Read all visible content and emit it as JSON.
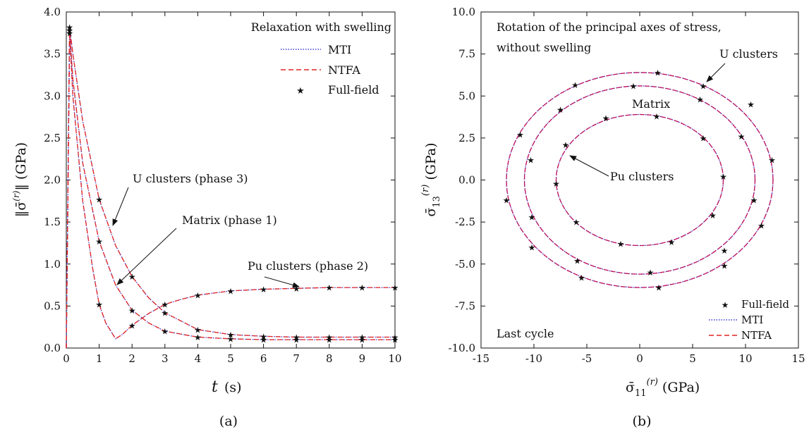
{
  "chart_data": [
    {
      "type": "line",
      "panel_label": "(a)",
      "title": "Relaxation with swelling",
      "xlabel": "t (s)",
      "ylabel": "‖σ̄(r)‖ (GPa)",
      "xlim": [
        0,
        10
      ],
      "ylim": [
        0,
        4
      ],
      "xticks": [
        0,
        1,
        2,
        3,
        4,
        5,
        6,
        7,
        8,
        9,
        10
      ],
      "yticks": [
        0,
        0.5,
        1.0,
        1.5,
        2.0,
        2.5,
        3.0,
        3.5,
        4.0
      ],
      "ytick_labels": [
        "0.0",
        "0.5",
        "1.0",
        "1.5",
        "2.0",
        "2.5",
        "3.0",
        "3.5",
        "4.0"
      ],
      "grid": false,
      "legend": {
        "position": "top-right",
        "entries": [
          "MTI",
          "NTFA",
          "Full-field"
        ]
      },
      "series": [
        {
          "name": "U clusters (phase 3)",
          "x": [
            0,
            0.1,
            0.2,
            0.5,
            1,
            1.5,
            2,
            2.5,
            3,
            4,
            5,
            6,
            7,
            8,
            9,
            10
          ],
          "values": [
            0,
            3.82,
            3.5,
            2.7,
            1.77,
            1.22,
            0.85,
            0.6,
            0.42,
            0.22,
            0.16,
            0.14,
            0.13,
            0.13,
            0.13,
            0.13
          ]
        },
        {
          "name": "Matrix (phase 1)",
          "x": [
            0,
            0.1,
            0.2,
            0.5,
            1,
            1.5,
            2,
            2.5,
            3,
            4,
            5,
            6,
            7,
            8,
            9,
            10
          ],
          "values": [
            0,
            3.78,
            3.2,
            2.2,
            1.27,
            0.75,
            0.45,
            0.3,
            0.2,
            0.13,
            0.11,
            0.1,
            0.1,
            0.1,
            0.1,
            0.1
          ]
        },
        {
          "name": "Pu clusters (phase 2)",
          "x": [
            0,
            0.1,
            0.2,
            0.5,
            0.8,
            1,
            1.2,
            1.5,
            1.7,
            2,
            2.5,
            3,
            3.5,
            4,
            5,
            6,
            7,
            8,
            9,
            10
          ],
          "values": [
            0,
            3.75,
            3.0,
            1.75,
            0.95,
            0.52,
            0.3,
            0.11,
            0.16,
            0.27,
            0.41,
            0.52,
            0.58,
            0.63,
            0.68,
            0.7,
            0.71,
            0.72,
            0.72,
            0.72
          ]
        }
      ],
      "full_field_markers": {
        "x": [
          0.1,
          1,
          2,
          3,
          4,
          5,
          6,
          7,
          8,
          9,
          10
        ],
        "U clusters (phase 3)": [
          3.82,
          1.77,
          0.85,
          0.42,
          0.22,
          0.16,
          0.14,
          0.13,
          0.13,
          0.13,
          0.13
        ],
        "Matrix (phase 1)": [
          3.78,
          1.27,
          0.45,
          0.2,
          0.13,
          0.11,
          0.1,
          0.1,
          0.1,
          0.1,
          0.1
        ],
        "Pu clusters (phase 2)": [
          3.75,
          0.52,
          0.27,
          0.52,
          0.63,
          0.68,
          0.7,
          0.71,
          0.72,
          0.72,
          0.72
        ]
      },
      "annotations": [
        "U clusters (phase 3)",
        "Matrix (phase 1)",
        "Pu clusters (phase 2)"
      ]
    },
    {
      "type": "line",
      "panel_label": "(b)",
      "title": "Rotation of the principal axes of stress, without swelling",
      "xlabel": "σ̄11(r) (GPa)",
      "ylabel": "σ̄13(r) (GPa)",
      "xlim": [
        -15,
        15
      ],
      "ylim": [
        -10,
        10
      ],
      "xticks": [
        -15,
        -10,
        -5,
        0,
        5,
        10,
        15
      ],
      "yticks": [
        -10,
        -7.5,
        -5,
        -2.5,
        0,
        2.5,
        5,
        7.5,
        10
      ],
      "ytick_labels": [
        "-10.0",
        "-7.5",
        "-5.0",
        "-2.5",
        "0.0",
        "2.5",
        "5.0",
        "7.5",
        "10.0"
      ],
      "grid": false,
      "legend": {
        "position": "bottom-right",
        "entries": [
          "Full-field",
          "MTI",
          "NTFA"
        ]
      },
      "corner_note": "Last cycle",
      "series": [
        {
          "name": "U clusters",
          "center": [
            0,
            0
          ],
          "rx": 12.6,
          "ry": 6.4
        },
        {
          "name": "Matrix",
          "center": [
            0,
            0
          ],
          "rx": 10.9,
          "ry": 5.6
        },
        {
          "name": "Pu clusters",
          "center": [
            0,
            0
          ],
          "rx": 7.9,
          "ry": 3.9
        }
      ],
      "full_field_markers": {
        "U clusters": [
          [
            1.7,
            6.4
          ],
          [
            6.0,
            5.6
          ],
          [
            10.5,
            4.5
          ],
          [
            12.5,
            1.2
          ],
          [
            11.5,
            -2.7
          ],
          [
            8.0,
            -5.1
          ],
          [
            1.8,
            -6.4
          ],
          [
            -5.5,
            -5.8
          ],
          [
            -10.2,
            -4.0
          ],
          [
            -12.6,
            -1.2
          ],
          [
            -11.3,
            2.7
          ],
          [
            -6.1,
            5.65
          ]
        ],
        "Matrix": [
          [
            -0.6,
            5.6
          ],
          [
            5.7,
            4.8
          ],
          [
            9.6,
            2.6
          ],
          [
            10.8,
            -1.2
          ],
          [
            8.0,
            -4.2
          ],
          [
            1.0,
            -5.5
          ],
          [
            -5.9,
            -4.8
          ],
          [
            -10.2,
            -2.2
          ],
          [
            -10.3,
            1.2
          ],
          [
            -7.5,
            4.2
          ]
        ],
        "Pu clusters": [
          [
            -3.2,
            3.7
          ],
          [
            1.6,
            3.8
          ],
          [
            6.0,
            2.5
          ],
          [
            7.9,
            0.2
          ],
          [
            6.9,
            -2.1
          ],
          [
            3.0,
            -3.7
          ],
          [
            -1.8,
            -3.8
          ],
          [
            -6.0,
            -2.5
          ],
          [
            -7.9,
            -0.2
          ],
          [
            -7.0,
            2.1
          ]
        ]
      },
      "annotations": [
        "U clusters",
        "Matrix",
        "Pu clusters"
      ]
    }
  ]
}
